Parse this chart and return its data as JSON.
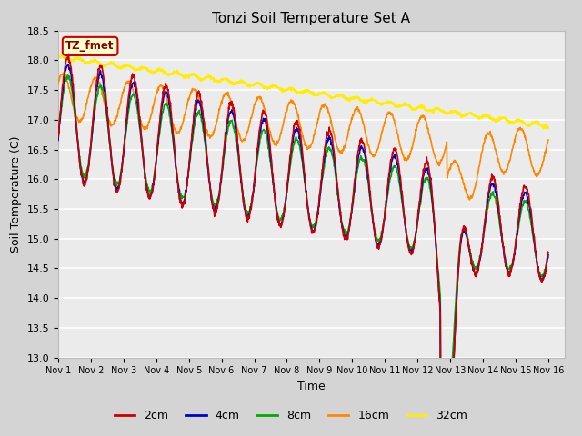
{
  "title": "Tonzi Soil Temperature Set A",
  "xlabel": "Time",
  "ylabel": "Soil Temperature (C)",
  "ylim": [
    13.0,
    18.5
  ],
  "xlim_days": 15.5,
  "plot_bg_color": "#ebebeb",
  "fig_bg_color": "#d4d4d4",
  "series": {
    "2cm": {
      "color": "#cc0000",
      "lw": 1.2
    },
    "4cm": {
      "color": "#0000cc",
      "lw": 1.2
    },
    "8cm": {
      "color": "#00aa00",
      "lw": 1.2
    },
    "16cm": {
      "color": "#ff8800",
      "lw": 1.2
    },
    "32cm": {
      "color": "#ffee00",
      "lw": 1.5
    }
  },
  "legend_label": "TZ_fmet",
  "legend_box_color": "#ffffcc",
  "legend_box_edge": "#cc0000",
  "tick_labels": [
    "Nov 1",
    "Nov 2",
    "Nov 3",
    "Nov 4",
    "Nov 5",
    "Nov 6",
    "Nov 7",
    "Nov 8",
    "Nov 9",
    "Nov 10",
    "Nov 11",
    "Nov 12",
    "Nov 13",
    "Nov 14",
    "Nov 15",
    "Nov 16"
  ]
}
